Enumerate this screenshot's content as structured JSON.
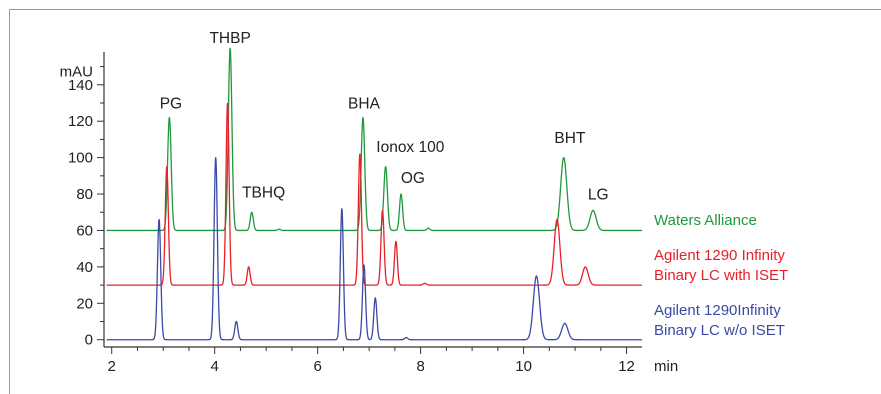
{
  "chart_data": {
    "type": "line",
    "ylabel": "mAU",
    "xlabel": "min",
    "xlim": [
      1.85,
      12.3
    ],
    "ylim": [
      -4,
      158
    ],
    "xticks": [
      2,
      4,
      6,
      8,
      10,
      12
    ],
    "yticks": [
      0,
      20,
      40,
      60,
      80,
      100,
      120,
      140
    ],
    "grid": false,
    "peak_labels": [
      {
        "text": "PG",
        "x": 3.15,
        "y": 127
      },
      {
        "text": "THBP",
        "x": 4.3,
        "y": 163
      },
      {
        "text": "TBHQ",
        "x": 4.95,
        "y": 78
      },
      {
        "text": "BHA",
        "x": 6.9,
        "y": 127
      },
      {
        "text": "Ionox 100",
        "x": 7.8,
        "y": 103
      },
      {
        "text": "OG",
        "x": 7.85,
        "y": 86
      },
      {
        "text": "BHT",
        "x": 10.9,
        "y": 108
      },
      {
        "text": "LG",
        "x": 11.45,
        "y": 77
      }
    ],
    "series": [
      {
        "name": "Waters Alliance",
        "color": "#1e9a3c",
        "baseline": 60,
        "peaks": [
          {
            "x": 3.12,
            "height": 62,
            "width": 0.035
          },
          {
            "x": 4.3,
            "height": 100,
            "width": 0.035
          },
          {
            "x": 4.72,
            "height": 10,
            "width": 0.03
          },
          {
            "x": 5.25,
            "height": 0.7,
            "width": 0.03
          },
          {
            "x": 6.88,
            "height": 62,
            "width": 0.035
          },
          {
            "x": 7.32,
            "height": 35,
            "width": 0.035
          },
          {
            "x": 7.62,
            "height": 20,
            "width": 0.03
          },
          {
            "x": 8.15,
            "height": 1.2,
            "width": 0.03
          },
          {
            "x": 10.78,
            "height": 40,
            "width": 0.06
          },
          {
            "x": 11.35,
            "height": 11,
            "width": 0.06
          }
        ]
      },
      {
        "name": "Agilent 1290 Infinity Binary LC with ISET",
        "color": "#e8202a",
        "baseline": 30,
        "peaks": [
          {
            "x": 3.07,
            "height": 65,
            "width": 0.03
          },
          {
            "x": 4.25,
            "height": 100,
            "width": 0.03
          },
          {
            "x": 4.66,
            "height": 10,
            "width": 0.028
          },
          {
            "x": 6.82,
            "height": 72,
            "width": 0.03
          },
          {
            "x": 7.26,
            "height": 41,
            "width": 0.03
          },
          {
            "x": 7.52,
            "height": 24,
            "width": 0.028
          },
          {
            "x": 8.08,
            "height": 1,
            "width": 0.03
          },
          {
            "x": 10.65,
            "height": 36,
            "width": 0.055
          },
          {
            "x": 11.2,
            "height": 10,
            "width": 0.055
          }
        ]
      },
      {
        "name": "Agilent 1290Infinity Binary LC  w/o ISET",
        "color": "#3a4aa6",
        "baseline": 0,
        "peaks": [
          {
            "x": 2.92,
            "height": 66,
            "width": 0.032
          },
          {
            "x": 4.02,
            "height": 100,
            "width": 0.032
          },
          {
            "x": 4.42,
            "height": 10,
            "width": 0.03
          },
          {
            "x": 6.47,
            "height": 72,
            "width": 0.03
          },
          {
            "x": 6.9,
            "height": 41,
            "width": 0.03
          },
          {
            "x": 7.12,
            "height": 23,
            "width": 0.03
          },
          {
            "x": 7.72,
            "height": 1.2,
            "width": 0.03
          },
          {
            "x": 10.25,
            "height": 35,
            "width": 0.06
          },
          {
            "x": 10.8,
            "height": 9,
            "width": 0.06
          }
        ]
      }
    ],
    "legend": {
      "placement": "right",
      "entries": [
        {
          "lines": [
            "Waters Alliance"
          ],
          "color": "#1e9a3c"
        },
        {
          "lines": [
            "Agilent 1290 Infinity",
            "Binary LC with ISET"
          ],
          "color": "#e8202a"
        },
        {
          "lines": [
            "Agilent 1290Infinity",
            "Binary LC  w/o ISET"
          ],
          "color": "#3a4aa6"
        }
      ]
    }
  }
}
